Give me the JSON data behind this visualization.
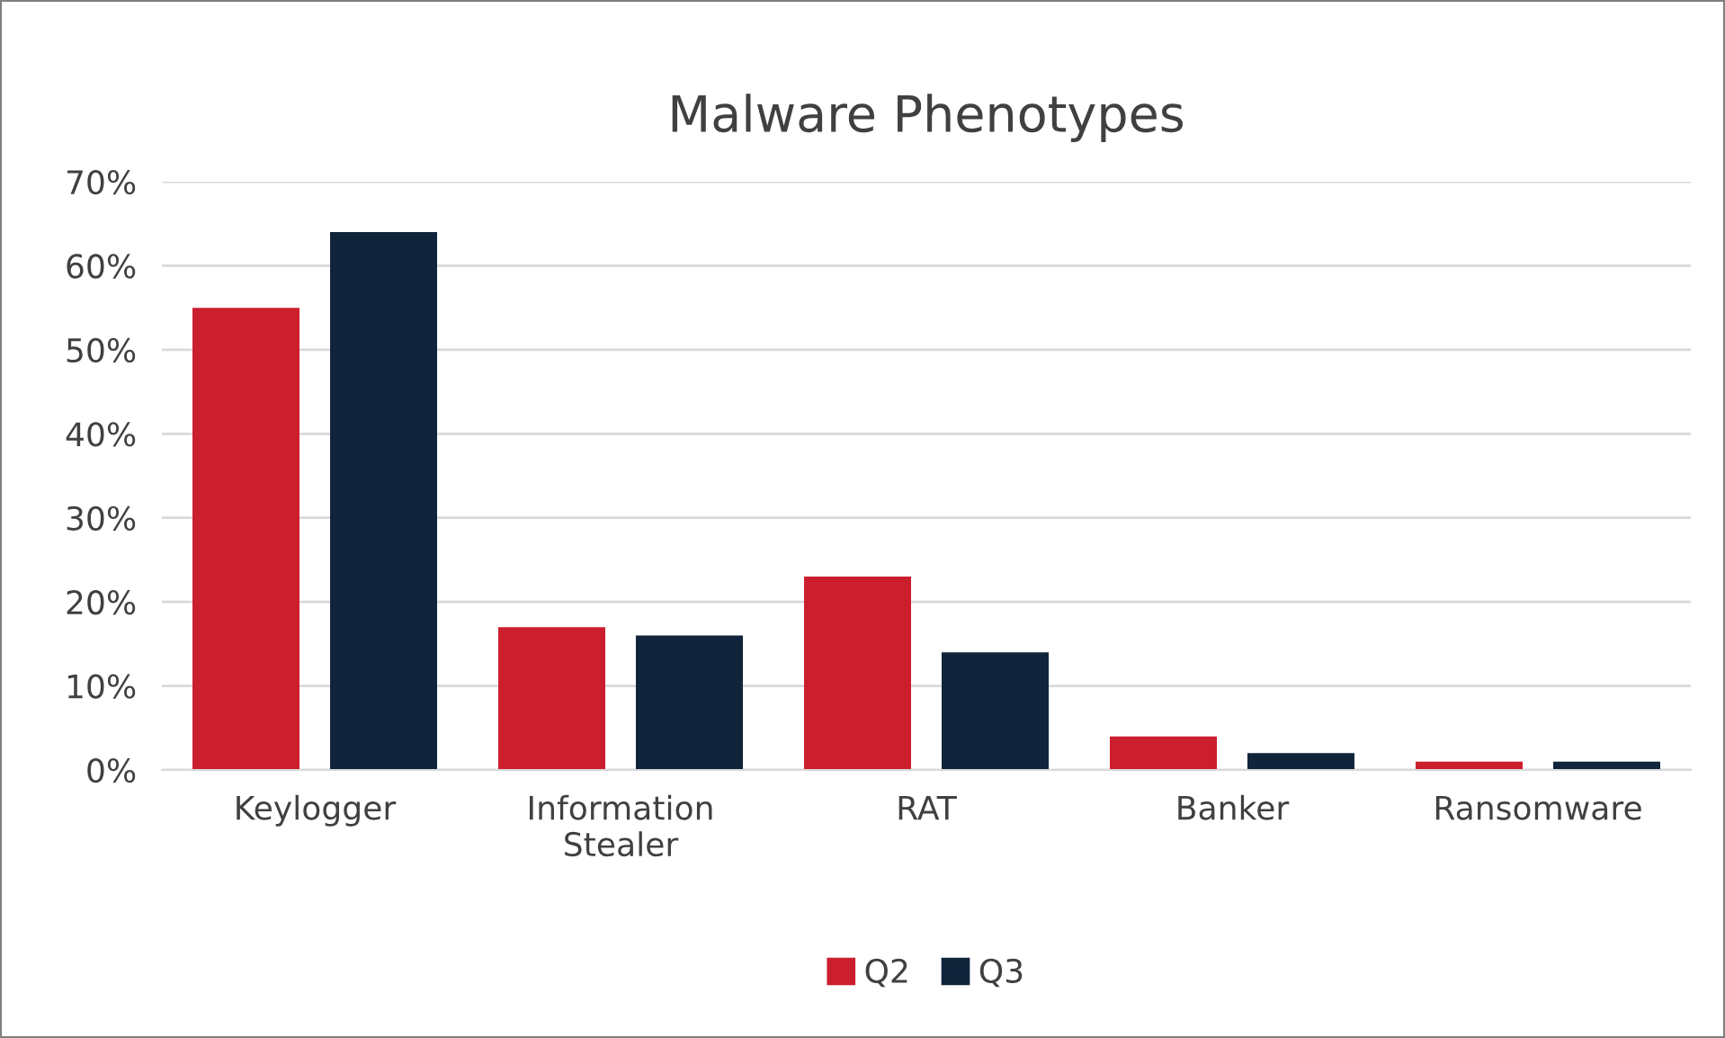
{
  "chart_data": {
    "type": "bar",
    "title": "Malware Phenotypes",
    "categories": [
      "Keylogger",
      "Information Stealer",
      "RAT",
      "Banker",
      "Ransomware"
    ],
    "series": [
      {
        "name": "Q2",
        "color": "#cc1f2e",
        "values": [
          55,
          17,
          23,
          4,
          1
        ]
      },
      {
        "name": "Q3",
        "color": "#10253b",
        "values": [
          64,
          16,
          14,
          2,
          1
        ]
      }
    ],
    "ylim": [
      0,
      70
    ],
    "yticks": [
      {
        "value": 0,
        "label": "0%"
      },
      {
        "value": 10,
        "label": "10%"
      },
      {
        "value": 20,
        "label": "20%"
      },
      {
        "value": 30,
        "label": "30%"
      },
      {
        "value": 40,
        "label": "40%"
      },
      {
        "value": 50,
        "label": "50%"
      },
      {
        "value": 60,
        "label": "60%"
      },
      {
        "value": 70,
        "label": "70%"
      }
    ],
    "grid": "y",
    "legend": "bottom"
  }
}
